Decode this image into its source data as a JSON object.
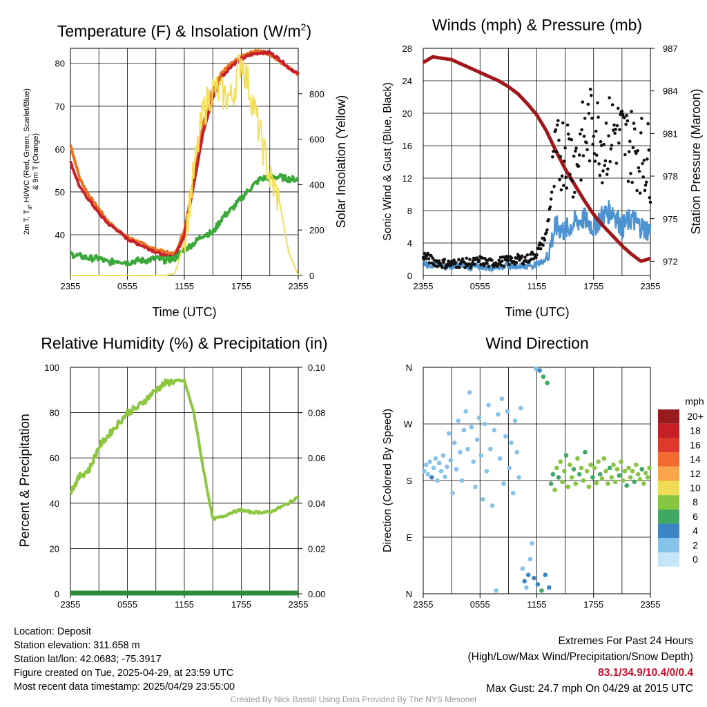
{
  "chart_data": [
    {
      "type": "line",
      "title": "Temperature (F) & Insolation (W/m",
      "title_sup": "2",
      "title_end": ")",
      "xlabel": "Time (UTC)",
      "ylabel_lines": [
        "2m T, T",
        "d",
        ", HI/WC (Red, Green, Scarlet/Blue)",
        "& 9m T (Orange)"
      ],
      "y2label": "Solar Insolation (Yellow)",
      "x_ticks": [
        "2355",
        "0555",
        "1155",
        "1755",
        "2355"
      ],
      "y_ticks": [
        40,
        50,
        60,
        70,
        80
      ],
      "y2_ticks": [
        0,
        200,
        400,
        600,
        800
      ],
      "ylim": [
        30.5,
        83.5
      ],
      "y2lim": [
        0,
        1000
      ],
      "grid": true,
      "x_hours": [
        0,
        1,
        2,
        3,
        4,
        5,
        6,
        7,
        8,
        9,
        10,
        11,
        12,
        13,
        14,
        15,
        16,
        17,
        18,
        19,
        20,
        21,
        22,
        23,
        24
      ],
      "series": [
        {
          "color": "#e8731f",
          "values": [
            61,
            53,
            49,
            46,
            43,
            41,
            39.5,
            38.5,
            37.5,
            36.5,
            36,
            35.5,
            41,
            53,
            66,
            74,
            78,
            80,
            81.5,
            82.5,
            83,
            82,
            80.5,
            79,
            77.5
          ]
        },
        {
          "color": "#c8202a",
          "values": [
            57,
            51,
            48,
            45,
            42.5,
            41,
            39,
            38,
            37,
            36,
            35,
            35,
            40,
            52,
            64,
            72,
            77,
            79.5,
            81,
            82,
            82.5,
            82.5,
            81,
            79,
            77.5
          ]
        },
        {
          "color": "#3ba83a",
          "values": [
            35.5,
            35,
            34.5,
            34.5,
            33.5,
            34,
            33.5,
            34,
            34,
            34.5,
            34,
            34.5,
            36.5,
            38,
            40,
            40.5,
            44,
            46,
            48.5,
            51,
            53,
            53.5,
            53.5,
            53,
            53
          ]
        },
        {
          "color": "#f3df58",
          "axis": "y2",
          "values": [
            0,
            0,
            0,
            0,
            0,
            0,
            0,
            0,
            0,
            0,
            0,
            10,
            150,
            450,
            720,
            820,
            800,
            780,
            960,
            800,
            620,
            430,
            330,
            100,
            0
          ]
        }
      ]
    },
    {
      "type": "line",
      "title": "Winds (mph) & Pressure (mb)",
      "xlabel": "Time (UTC)",
      "ylabel": "Sonic Wind & Gust (Blue, Black)",
      "y2label": "Station Pressure (Maroon)",
      "x_ticks": [
        "2355",
        "0555",
        "1155",
        "1755",
        "2355"
      ],
      "y_ticks": [
        0,
        4,
        8,
        12,
        16,
        20,
        24,
        28
      ],
      "y2_ticks": [
        972,
        975,
        978,
        981,
        984,
        987
      ],
      "ylim": [
        0,
        28
      ],
      "y2lim": [
        971,
        987
      ],
      "grid": true,
      "x_hours": [
        0,
        1,
        2,
        3,
        4,
        5,
        6,
        7,
        8,
        9,
        10,
        11,
        12,
        13,
        14,
        15,
        16,
        17,
        18,
        19,
        20,
        21,
        22,
        23,
        24
      ],
      "series": [
        {
          "color": "#4e93d1",
          "values": [
            1.6,
            1.3,
            1.2,
            1.1,
            1.2,
            1.0,
            1.1,
            1.0,
            1.1,
            1.2,
            1.2,
            1.1,
            1.4,
            2.0,
            6.0,
            5.5,
            6.5,
            7.0,
            6.0,
            7.5,
            8.0,
            6.0,
            7.0,
            6.0,
            5.5
          ]
        },
        {
          "color": "#a0161b",
          "axis": "y2",
          "values": [
            986,
            986.4,
            986.3,
            986.2,
            985.9,
            985.6,
            985.3,
            985.0,
            984.7,
            984.3,
            983.8,
            983.1,
            982.3,
            981.2,
            979.8,
            978.5,
            977.4,
            976.3,
            975.3,
            974.5,
            973.8,
            973.1,
            972.5,
            972.0,
            972.2
          ]
        },
        {
          "color": "#111111",
          "type": "scatter",
          "values": [
            2.5,
            1.8,
            1.5,
            1.4,
            1.6,
            1.5,
            1.8,
            1.5,
            1.7,
            1.8,
            2.0,
            2.0,
            2.8,
            5.0,
            14,
            16,
            14,
            17,
            19,
            16,
            18,
            17,
            16,
            15,
            14
          ]
        }
      ]
    },
    {
      "type": "line",
      "title": "Relative Humidity (%) & Precipitation (in)",
      "ylabel": "Percent & Precipitation",
      "x_ticks": [
        "2355",
        "0555",
        "1155",
        "1755",
        "2355"
      ],
      "y_ticks": [
        0,
        20,
        40,
        60,
        80,
        100
      ],
      "y2_ticks": [
        "0.00",
        "0.02",
        "0.04",
        "0.06",
        "0.08",
        "0.10"
      ],
      "ylim": [
        0,
        100
      ],
      "y2lim": [
        0,
        0.1
      ],
      "grid": true,
      "x_hours": [
        0,
        1,
        2,
        3,
        4,
        5,
        6,
        7,
        8,
        9,
        10,
        11,
        12,
        13,
        14,
        15,
        16,
        17,
        18,
        19,
        20,
        21,
        22,
        23,
        24
      ],
      "series": [
        {
          "color": "#8dc63f",
          "values": [
            45,
            52,
            55,
            65,
            70,
            75,
            80,
            82,
            86,
            90,
            93,
            94,
            94,
            80,
            55,
            33,
            34,
            36,
            37,
            36,
            36,
            36,
            38,
            40,
            43
          ]
        },
        {
          "color": "#2e8b3a",
          "axis": "y2",
          "values": [
            0,
            0,
            0,
            0,
            0,
            0,
            0,
            0,
            0,
            0,
            0,
            0,
            0,
            0,
            0,
            0,
            0,
            0,
            0,
            0,
            0,
            0,
            0,
            0,
            0
          ]
        }
      ]
    },
    {
      "type": "scatter",
      "title": "Wind Direction",
      "ylabel": "Direction (Colored By Speed)",
      "x_ticks": [
        "2355",
        "0555",
        "1155",
        "1755",
        "2355"
      ],
      "y_ticks": [
        "N",
        "E",
        "S",
        "W",
        "N"
      ],
      "y_tick_values": [
        0,
        90,
        180,
        270,
        360
      ],
      "ylim": [
        0,
        360
      ],
      "grid": true,
      "legend_title": "mph",
      "legend": [
        {
          "label": "20+",
          "color": "#9b1a1e"
        },
        {
          "label": "18",
          "color": "#c62026"
        },
        {
          "label": "16",
          "color": "#dd3a2b"
        },
        {
          "label": "14",
          "color": "#f26a30"
        },
        {
          "label": "12",
          "color": "#f9a64a"
        },
        {
          "label": "10",
          "color": "#eedd55"
        },
        {
          "label": "8",
          "color": "#88c540"
        },
        {
          "label": "6",
          "color": "#41a864"
        },
        {
          "label": "4",
          "color": "#3b85c4"
        },
        {
          "label": "2",
          "color": "#86c3ea"
        },
        {
          "label": "0",
          "color": "#c3e6f8"
        }
      ],
      "legend_placement": "right",
      "points": [
        {
          "x": 0.1,
          "y": 195,
          "s": 1
        },
        {
          "x": 0.3,
          "y": 205,
          "s": 1
        },
        {
          "x": 0.5,
          "y": 190,
          "s": 1
        },
        {
          "x": 0.7,
          "y": 210,
          "s": 1
        },
        {
          "x": 0.9,
          "y": 185,
          "s": 2
        },
        {
          "x": 1.1,
          "y": 200,
          "s": 1
        },
        {
          "x": 1.3,
          "y": 215,
          "s": 1
        },
        {
          "x": 1.5,
          "y": 180,
          "s": 1
        },
        {
          "x": 1.7,
          "y": 208,
          "s": 1
        },
        {
          "x": 1.9,
          "y": 195,
          "s": 1
        },
        {
          "x": 2.1,
          "y": 220,
          "s": 1
        },
        {
          "x": 2.3,
          "y": 186,
          "s": 1
        },
        {
          "x": 2.5,
          "y": 202,
          "s": 1
        },
        {
          "x": 2.7,
          "y": 255,
          "s": 1
        },
        {
          "x": 2.9,
          "y": 212,
          "s": 1
        },
        {
          "x": 3.1,
          "y": 160,
          "s": 1
        },
        {
          "x": 3.3,
          "y": 240,
          "s": 1
        },
        {
          "x": 3.5,
          "y": 198,
          "s": 1
        },
        {
          "x": 3.7,
          "y": 275,
          "s": 1
        },
        {
          "x": 3.9,
          "y": 225,
          "s": 1
        },
        {
          "x": 4.1,
          "y": 180,
          "s": 1
        },
        {
          "x": 4.3,
          "y": 260,
          "s": 1
        },
        {
          "x": 4.5,
          "y": 290,
          "s": 1
        },
        {
          "x": 4.7,
          "y": 230,
          "s": 1
        },
        {
          "x": 4.9,
          "y": 320,
          "s": 1
        },
        {
          "x": 5.1,
          "y": 265,
          "s": 1
        },
        {
          "x": 5.3,
          "y": 210,
          "s": 1
        },
        {
          "x": 5.5,
          "y": 170,
          "s": 1
        },
        {
          "x": 5.7,
          "y": 245,
          "s": 1
        },
        {
          "x": 5.9,
          "y": 280,
          "s": 1
        },
        {
          "x": 6.1,
          "y": 220,
          "s": 1
        },
        {
          "x": 6.3,
          "y": 150,
          "s": 1
        },
        {
          "x": 6.5,
          "y": 270,
          "s": 1
        },
        {
          "x": 6.7,
          "y": 195,
          "s": 1
        },
        {
          "x": 6.9,
          "y": 300,
          "s": 1
        },
        {
          "x": 7.1,
          "y": 230,
          "s": 1
        },
        {
          "x": 7.3,
          "y": 140,
          "s": 1
        },
        {
          "x": 7.5,
          "y": 260,
          "s": 1
        },
        {
          "x": 7.7,
          "y": 5,
          "s": 1
        },
        {
          "x": 7.9,
          "y": 285,
          "s": 1
        },
        {
          "x": 8.1,
          "y": 215,
          "s": 1
        },
        {
          "x": 8.3,
          "y": 310,
          "s": 1
        },
        {
          "x": 8.5,
          "y": 175,
          "s": 1
        },
        {
          "x": 8.7,
          "y": 250,
          "s": 1
        },
        {
          "x": 8.9,
          "y": 290,
          "s": 1
        },
        {
          "x": 9.1,
          "y": 200,
          "s": 1
        },
        {
          "x": 9.3,
          "y": 240,
          "s": 1
        },
        {
          "x": 9.5,
          "y": 160,
          "s": 1
        },
        {
          "x": 9.7,
          "y": 275,
          "s": 1
        },
        {
          "x": 9.9,
          "y": 225,
          "s": 1
        },
        {
          "x": 10.1,
          "y": 185,
          "s": 1
        },
        {
          "x": 10.3,
          "y": 295,
          "s": 1
        },
        {
          "x": 10.5,
          "y": 40,
          "s": 1
        },
        {
          "x": 10.7,
          "y": 20,
          "s": 2
        },
        {
          "x": 10.9,
          "y": 10,
          "s": 1
        },
        {
          "x": 11.1,
          "y": 30,
          "s": 2
        },
        {
          "x": 11.3,
          "y": 55,
          "s": 1
        },
        {
          "x": 11.5,
          "y": 80,
          "s": 1
        },
        {
          "x": 11.7,
          "y": 25,
          "s": 2
        },
        {
          "x": 11.9,
          "y": 358,
          "s": 1
        },
        {
          "x": 12.1,
          "y": 15,
          "s": 2
        },
        {
          "x": 12.3,
          "y": 355,
          "s": 2
        },
        {
          "x": 12.5,
          "y": 5,
          "s": 3
        },
        {
          "x": 12.7,
          "y": 345,
          "s": 3
        },
        {
          "x": 12.9,
          "y": 30,
          "s": 2
        },
        {
          "x": 13.1,
          "y": 335,
          "s": 3
        },
        {
          "x": 13.3,
          "y": 10,
          "s": 2
        },
        {
          "x": 13.5,
          "y": 175,
          "s": 3
        },
        {
          "x": 13.7,
          "y": 190,
          "s": 3
        },
        {
          "x": 13.9,
          "y": 165,
          "s": 4
        },
        {
          "x": 14.1,
          "y": 200,
          "s": 4
        },
        {
          "x": 14.3,
          "y": 185,
          "s": 3
        },
        {
          "x": 14.5,
          "y": 210,
          "s": 4
        },
        {
          "x": 14.7,
          "y": 178,
          "s": 4
        },
        {
          "x": 14.9,
          "y": 195,
          "s": 4
        },
        {
          "x": 15.1,
          "y": 220,
          "s": 3
        },
        {
          "x": 15.3,
          "y": 170,
          "s": 4
        },
        {
          "x": 15.5,
          "y": 205,
          "s": 4
        },
        {
          "x": 15.7,
          "y": 185,
          "s": 4
        },
        {
          "x": 15.9,
          "y": 198,
          "s": 3
        },
        {
          "x": 16.1,
          "y": 175,
          "s": 4
        },
        {
          "x": 16.3,
          "y": 215,
          "s": 4
        },
        {
          "x": 16.5,
          "y": 190,
          "s": 3
        },
        {
          "x": 16.7,
          "y": 200,
          "s": 4
        },
        {
          "x": 16.9,
          "y": 180,
          "s": 4
        },
        {
          "x": 17.1,
          "y": 225,
          "s": 3
        },
        {
          "x": 17.3,
          "y": 195,
          "s": 4
        },
        {
          "x": 17.5,
          "y": 170,
          "s": 4
        },
        {
          "x": 17.7,
          "y": 205,
          "s": 4
        },
        {
          "x": 17.9,
          "y": 185,
          "s": 3
        },
        {
          "x": 18.1,
          "y": 200,
          "s": 4
        },
        {
          "x": 18.3,
          "y": 176,
          "s": 4
        },
        {
          "x": 18.5,
          "y": 210,
          "s": 4
        },
        {
          "x": 18.7,
          "y": 190,
          "s": 3
        },
        {
          "x": 18.9,
          "y": 183,
          "s": 4
        },
        {
          "x": 19.1,
          "y": 215,
          "s": 4
        },
        {
          "x": 19.3,
          "y": 195,
          "s": 4
        },
        {
          "x": 19.5,
          "y": 175,
          "s": 4
        },
        {
          "x": 19.7,
          "y": 200,
          "s": 3
        },
        {
          "x": 19.9,
          "y": 185,
          "s": 4
        },
        {
          "x": 20.1,
          "y": 205,
          "s": 4
        },
        {
          "x": 20.3,
          "y": 178,
          "s": 4
        },
        {
          "x": 20.5,
          "y": 198,
          "s": 4
        },
        {
          "x": 20.7,
          "y": 188,
          "s": 3
        },
        {
          "x": 20.9,
          "y": 210,
          "s": 4
        },
        {
          "x": 21.1,
          "y": 180,
          "s": 4
        },
        {
          "x": 21.3,
          "y": 195,
          "s": 4
        },
        {
          "x": 21.5,
          "y": 172,
          "s": 3
        },
        {
          "x": 21.7,
          "y": 200,
          "s": 4
        },
        {
          "x": 21.9,
          "y": 185,
          "s": 4
        },
        {
          "x": 22.1,
          "y": 195,
          "s": 4
        },
        {
          "x": 22.3,
          "y": 178,
          "s": 3
        },
        {
          "x": 22.5,
          "y": 205,
          "s": 4
        },
        {
          "x": 22.7,
          "y": 190,
          "s": 4
        },
        {
          "x": 22.9,
          "y": 182,
          "s": 4
        },
        {
          "x": 23.1,
          "y": 198,
          "s": 3
        },
        {
          "x": 23.3,
          "y": 175,
          "s": 4
        },
        {
          "x": 23.5,
          "y": 192,
          "s": 4
        },
        {
          "x": 23.7,
          "y": 185,
          "s": 4
        },
        {
          "x": 23.9,
          "y": 200,
          "s": 4
        }
      ]
    }
  ],
  "info": {
    "location": "Location: Deposit",
    "elevation": "Station elevation: 311.658 m",
    "latlon": "Station lat/lon: 42.0683; -75.3917",
    "created": "Figure created on Tue, 2025-04-29, at 23:59 UTC",
    "timestamp": "Most recent data timestamp: 2025/04/29 23:55:00"
  },
  "extremes": {
    "title": "Extremes For Past 24 Hours",
    "subtitle": "(High/Low/Max Wind/Precipitation/Snow Depth)",
    "values": "83.1/34.9/10.4/0/0.4",
    "gust": "Max Gust: 24.7 mph On 04/29 at 2015 UTC"
  },
  "credit": "Created By Nick Bassill Using Data Provided By The NYS Mesonet"
}
